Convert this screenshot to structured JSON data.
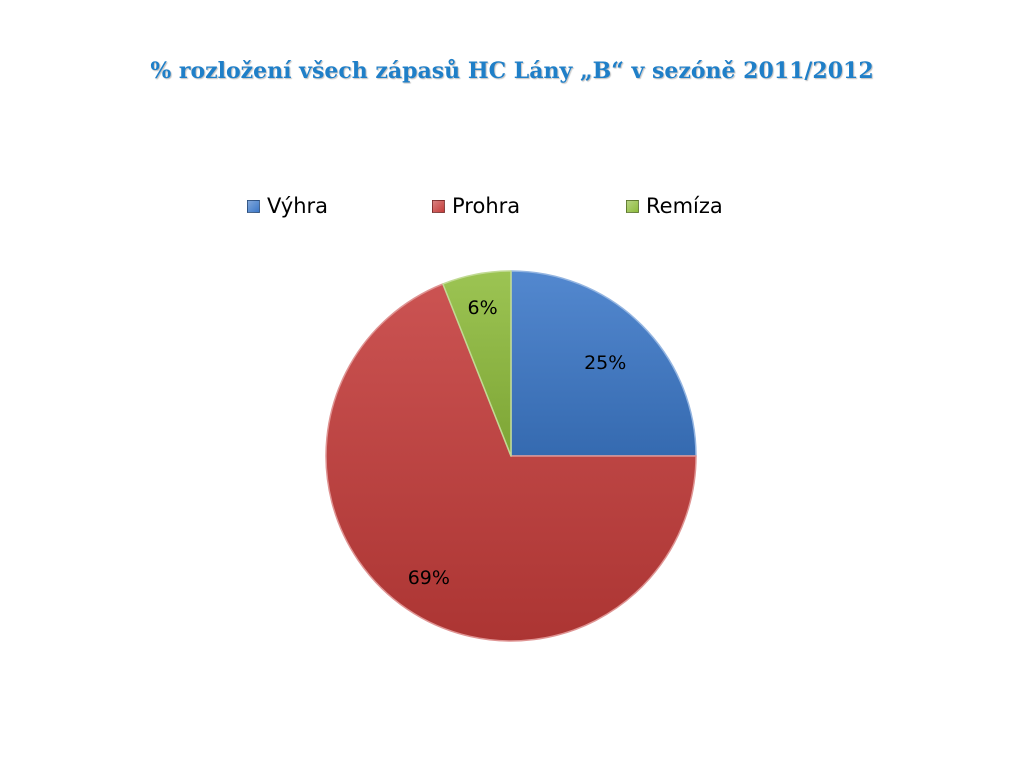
{
  "title": "% rozložení všech zápasů HC Lány „B“ v sezóně 2011/2012",
  "chart_data": {
    "type": "pie",
    "title": "% rozložení všech zápasů HC Lány „B“ v sezóně 2011/2012",
    "categories": [
      "Výhra",
      "Prohra",
      "Remíza"
    ],
    "values": [
      25,
      69,
      6
    ],
    "data_labels": [
      "25%",
      "69%",
      "6%"
    ],
    "colors": [
      "#3c78c8",
      "#c43c3a",
      "#8ebc3c"
    ],
    "legend_position": "top",
    "start_angle": "12 o'clock",
    "direction": "clockwise"
  }
}
